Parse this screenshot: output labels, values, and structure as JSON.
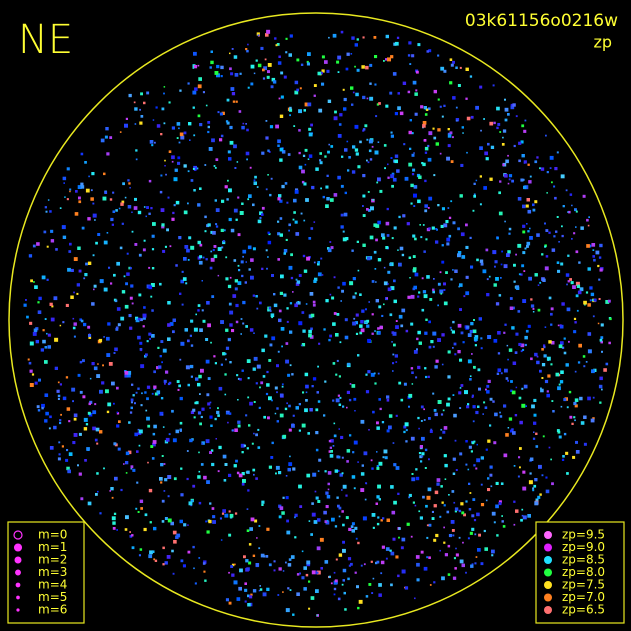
{
  "header": {
    "direction": "NE",
    "image_id": "03k61156o0216w",
    "mode": "zp"
  },
  "legend_m": {
    "items": [
      {
        "label": "m=0"
      },
      {
        "label": "m=1"
      },
      {
        "label": "m=2"
      },
      {
        "label": "m=3"
      },
      {
        "label": "m=4"
      },
      {
        "label": "m=5"
      },
      {
        "label": "m=6"
      }
    ]
  },
  "legend_zp": {
    "items": [
      {
        "label": "zp=9.5",
        "color": "#ff66ff"
      },
      {
        "label": "zp=9.0",
        "color": "#e020ff"
      },
      {
        "label": "zp=8.5",
        "color": "#20e0ff"
      },
      {
        "label": "zp=8.0",
        "color": "#20ff40"
      },
      {
        "label": "zp=7.5",
        "color": "#ffe020"
      },
      {
        "label": "zp=7.0",
        "color": "#ff8020"
      },
      {
        "label": "zp=6.5",
        "color": "#ff7070"
      }
    ]
  }
}
